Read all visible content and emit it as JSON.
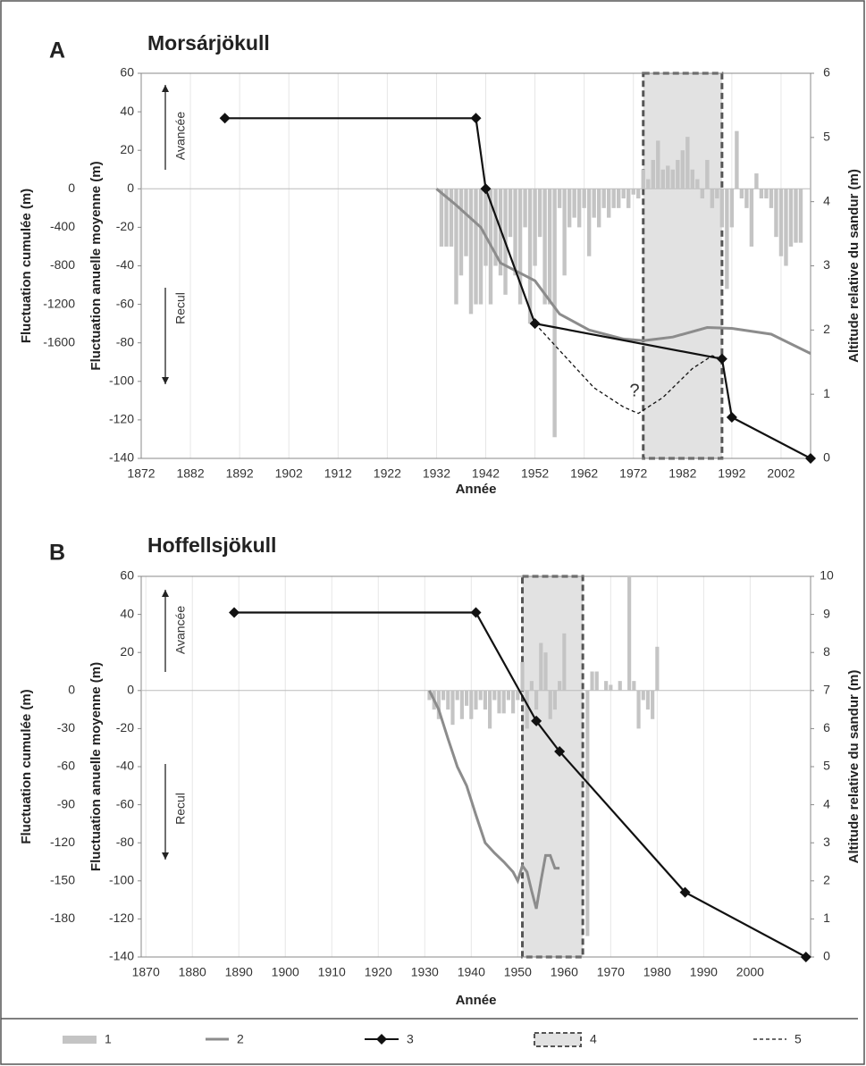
{
  "legend": [
    "1",
    "2",
    "3",
    "4",
    "5"
  ],
  "chart_data": [
    {
      "type": "combo",
      "panel_label": "A",
      "title": "Morsárjökull",
      "xlabel": "Année",
      "ylabel": "Fluctuation anuelle moyenne (m)",
      "y3label": "Fluctuation cumulée (m)",
      "y2label": "Altitude relative du sandur (m)",
      "advance_label": "Avancée",
      "retreat_label": "Recul",
      "question_label": "?",
      "xlim": [
        1872,
        2008
      ],
      "xticks": [
        1872,
        1882,
        1892,
        1902,
        1912,
        1922,
        1932,
        1942,
        1952,
        1962,
        1972,
        1982,
        1992,
        2002
      ],
      "ylim": [
        -140,
        60
      ],
      "yticks": [
        60,
        40,
        20,
        0,
        -20,
        -40,
        -60,
        -80,
        -100,
        -120,
        -140
      ],
      "y2lim": [
        0,
        6
      ],
      "y2ticks": [
        6,
        5,
        4,
        3,
        2,
        1,
        0
      ],
      "y3lim": [
        -2800,
        1200
      ],
      "y3ticks": [
        0,
        -400,
        -800,
        -1200,
        -1600
      ],
      "shade": {
        "x": [
          1974,
          1990
        ],
        "color": "#e2e2e2"
      },
      "series": [
        {
          "type": "bar",
          "color": "#c4c4c4",
          "x": [
            1933,
            1934,
            1935,
            1936,
            1937,
            1938,
            1939,
            1940,
            1941,
            1942,
            1943,
            1944,
            1945,
            1946,
            1947,
            1948,
            1949,
            1950,
            1951,
            1952,
            1953,
            1954,
            1955,
            1956,
            1957,
            1958,
            1959,
            1960,
            1961,
            1962,
            1963,
            1964,
            1965,
            1966,
            1967,
            1968,
            1969,
            1970,
            1971,
            1972,
            1973,
            1974,
            1975,
            1976,
            1977,
            1978,
            1979,
            1980,
            1981,
            1982,
            1983,
            1984,
            1985,
            1986,
            1987,
            1988,
            1989,
            1990,
            1991,
            1992,
            1993,
            1994,
            1995,
            1996,
            1997,
            1998,
            1999,
            2000,
            2001,
            2002,
            2003,
            2004,
            2005,
            2006
          ],
          "values": [
            -30,
            -30,
            -30,
            -60,
            -45,
            -35,
            -65,
            -60,
            -60,
            -40,
            -60,
            -40,
            -45,
            -55,
            -25,
            -45,
            -60,
            -20,
            -70,
            -40,
            -25,
            -60,
            -60,
            -129,
            -10,
            -45,
            -20,
            -15,
            -20,
            -10,
            -35,
            -15,
            -20,
            -10,
            -15,
            -10,
            -10,
            -5,
            -10,
            -3,
            -5,
            10,
            5,
            15,
            25,
            10,
            12,
            10,
            15,
            20,
            27,
            10,
            5,
            -5,
            15,
            -10,
            -5,
            -20,
            -52,
            -20,
            30,
            -5,
            -10,
            -30,
            8,
            -5,
            -5,
            -10,
            -25,
            -35,
            -40,
            -30,
            -28,
            -28
          ]
        },
        {
          "type": "line",
          "color": "#8c8c8c",
          "axis": "y3",
          "x": [
            1932,
            1936,
            1941,
            1945,
            1952,
            1957,
            1963,
            1970,
            1974,
            1980,
            1987,
            1992,
            2000,
            2008
          ],
          "values": [
            0,
            -170,
            -400,
            -770,
            -955,
            -1300,
            -1466,
            -1560,
            -1578,
            -1540,
            -1440,
            -1450,
            -1510,
            -1710
          ]
        },
        {
          "type": "marker-line",
          "color": "#111111",
          "axis": "y2",
          "x": [
            1889,
            1940,
            1942,
            1952,
            1990,
            1992,
            2008
          ],
          "values": [
            5.3,
            5.3,
            4.2,
            2.1,
            1.55,
            0.64,
            0
          ]
        },
        {
          "type": "dashed",
          "color": "#111111",
          "axis": "y2",
          "x": [
            1952,
            1958,
            1964,
            1970,
            1973,
            1978,
            1984,
            1988,
            1990
          ],
          "values": [
            2.1,
            1.6,
            1.1,
            0.8,
            0.7,
            0.95,
            1.4,
            1.6,
            1.55
          ]
        }
      ]
    },
    {
      "type": "combo",
      "panel_label": "B",
      "title": "Hoffellsjökull",
      "xlabel": "Année",
      "ylabel": "Fluctuation anuelle moyenne (m)",
      "y3label": "Fluctuation cumulée (m)",
      "y2label": "Altitude relative du sandur (m)",
      "advance_label": "Avancée",
      "retreat_label": "Recul",
      "xlim": [
        1869,
        2013
      ],
      "xticks": [
        1870,
        1880,
        1890,
        1900,
        1910,
        1920,
        1930,
        1940,
        1950,
        1960,
        1970,
        1980,
        1990,
        2000
      ],
      "ylim": [
        -140,
        60
      ],
      "yticks": [
        60,
        40,
        20,
        0,
        -20,
        -40,
        -60,
        -80,
        -100,
        -120,
        -140
      ],
      "y2lim": [
        0,
        10
      ],
      "y2ticks": [
        10,
        9,
        8,
        7,
        6,
        5,
        4,
        3,
        2,
        1,
        0
      ],
      "y3lim": [
        -210,
        90
      ],
      "y3ticks": [
        0,
        -30,
        -60,
        -90,
        -120,
        -150,
        -180
      ],
      "shade": {
        "x": [
          1951,
          1964
        ],
        "color": "#e2e2e2"
      },
      "series": [
        {
          "type": "bar",
          "color": "#c4c4c4",
          "x": [
            1931,
            1932,
            1933,
            1934,
            1935,
            1936,
            1937,
            1938,
            1939,
            1940,
            1941,
            1942,
            1943,
            1944,
            1945,
            1946,
            1947,
            1948,
            1949,
            1950,
            1951,
            1952,
            1953,
            1954,
            1955,
            1956,
            1957,
            1958,
            1959,
            1960,
            1965,
            1966,
            1967,
            1969,
            1970,
            1972,
            1974,
            1975,
            1976,
            1977,
            1978,
            1979,
            1980
          ],
          "values": [
            -5,
            -10,
            -15,
            -5,
            -10,
            -18,
            -5,
            -15,
            -8,
            -15,
            -10,
            -5,
            -10,
            -20,
            -5,
            -12,
            -12,
            -5,
            -12,
            -5,
            15,
            -20,
            5,
            -10,
            25,
            20,
            -15,
            -10,
            5,
            30,
            -129,
            10,
            10,
            5,
            3,
            5,
            60,
            5,
            -20,
            -5,
            -10,
            -15,
            23
          ]
        },
        {
          "type": "line",
          "color": "#8c8c8c",
          "axis": "y3",
          "x": [
            1931,
            1933,
            1935,
            1937,
            1939,
            1941,
            1943,
            1945,
            1947,
            1949,
            1950,
            1951,
            1952,
            1953,
            1954,
            1955,
            1956,
            1957,
            1958,
            1959
          ],
          "values": [
            0,
            -15,
            -38,
            -60,
            -75,
            -98,
            -120,
            -128,
            -135,
            -143,
            -150,
            -138,
            -143,
            -158,
            -172,
            -150,
            -130,
            -130,
            -140,
            -140
          ]
        },
        {
          "type": "marker-line",
          "color": "#111111",
          "axis": "y2",
          "x": [
            1889,
            1941,
            1954,
            1959,
            1986,
            2012
          ],
          "values": [
            9.05,
            9.05,
            6.2,
            5.4,
            1.7,
            0
          ]
        }
      ]
    }
  ]
}
